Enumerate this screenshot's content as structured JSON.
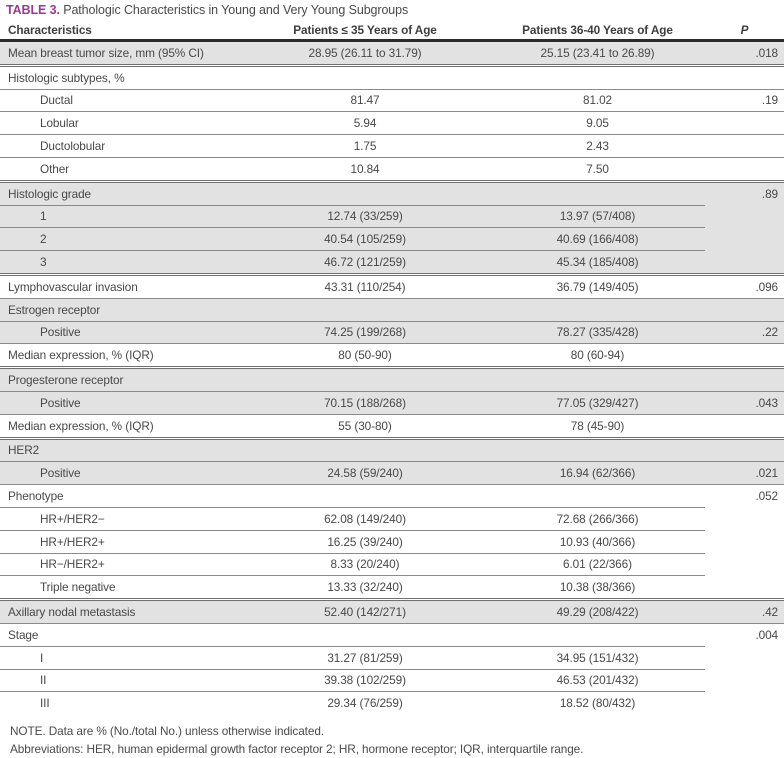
{
  "caption": {
    "tag": "TABLE 3.",
    "title": "Pathologic Characteristics in Young and Very Young Subgroups"
  },
  "colors": {
    "caption_tag_purple": "#9a3a97",
    "row_shade_gray": "#e2e2e2"
  },
  "columns": {
    "characteristics": "Characteristics",
    "age_le_35": "Patients ≤ 35 Years of Age",
    "age_36_40": "Patients 36-40 Years of Age",
    "p": "P"
  },
  "rows": [
    {
      "label": "Mean breast tumor size, mm (95% CI)",
      "v1": "28.95 (26.11 to 31.79)",
      "v2": "25.15 (23.41 to 26.89)",
      "p": ".018"
    },
    {
      "label": "Histologic subtypes, %",
      "v1": "",
      "v2": "",
      "p": ""
    },
    {
      "label": "Ductal",
      "v1": "81.47",
      "v2": "81.02",
      "p": ".19"
    },
    {
      "label": "Lobular",
      "v1": "5.94",
      "v2": "9.05",
      "p": ""
    },
    {
      "label": "Ductolobular",
      "v1": "1.75",
      "v2": "2.43",
      "p": ""
    },
    {
      "label": "Other",
      "v1": "10.84",
      "v2": "7.50",
      "p": ""
    },
    {
      "label": "Histologic grade",
      "v1": "",
      "v2": "",
      "p": ".89"
    },
    {
      "label": "1",
      "v1": "12.74 (33/259)",
      "v2": "13.97 (57/408)",
      "p": ""
    },
    {
      "label": "2",
      "v1": "40.54 (105/259)",
      "v2": "40.69 (166/408)",
      "p": ""
    },
    {
      "label": "3",
      "v1": "46.72 (121/259)",
      "v2": "45.34 (185/408)",
      "p": ""
    },
    {
      "label": "Lymphovascular invasion",
      "v1": "43.31 (110/254)",
      "v2": "36.79 (149/405)",
      "p": ".096"
    },
    {
      "label": "Estrogen receptor",
      "v1": "",
      "v2": "",
      "p": ""
    },
    {
      "label": "Positive",
      "v1": "74.25 (199/268)",
      "v2": "78.27 (335/428)",
      "p": ".22"
    },
    {
      "label": "Median expression, % (IQR)",
      "v1": "80 (50-90)",
      "v2": "80 (60-94)",
      "p": ""
    },
    {
      "label": "Progesterone receptor",
      "v1": "",
      "v2": "",
      "p": ""
    },
    {
      "label": "Positive",
      "v1": "70.15 (188/268)",
      "v2": "77.05 (329/427)",
      "p": ".043"
    },
    {
      "label": "Median expression, % (IQR)",
      "v1": "55 (30-80)",
      "v2": "78 (45-90)",
      "p": ""
    },
    {
      "label": "HER2",
      "v1": "",
      "v2": "",
      "p": ""
    },
    {
      "label": "Positive",
      "v1": "24.58 (59/240)",
      "v2": "16.94 (62/366)",
      "p": ".021"
    },
    {
      "label": "Phenotype",
      "v1": "",
      "v2": "",
      "p": ".052"
    },
    {
      "label": "HR+/HER2−",
      "v1": "62.08 (149/240)",
      "v2": "72.68 (266/366)",
      "p": ""
    },
    {
      "label": "HR+/HER2+",
      "v1": "16.25 (39/240)",
      "v2": "10.93 (40/366)",
      "p": ""
    },
    {
      "label": "HR−/HER2+",
      "v1": "8.33 (20/240)",
      "v2": "6.01 (22/366)",
      "p": ""
    },
    {
      "label": "Triple negative",
      "v1": "13.33 (32/240)",
      "v2": "10.38 (38/366)",
      "p": ""
    },
    {
      "label": "Axillary nodal metastasis",
      "v1": "52.40 (142/271)",
      "v2": "49.29 (208/422)",
      "p": ".42"
    },
    {
      "label": "Stage",
      "v1": "",
      "v2": "",
      "p": ".004"
    },
    {
      "label": "I",
      "v1": "31.27 (81/259)",
      "v2": "34.95 (151/432)",
      "p": ""
    },
    {
      "label": "II",
      "v1": "39.38 (102/259)",
      "v2": "46.53 (201/432)",
      "p": ""
    },
    {
      "label": "III",
      "v1": "29.34 (76/259)",
      "v2": "18.52 (80/432)",
      "p": ""
    }
  ],
  "notes": {
    "note": "NOTE. Data are % (No./total No.) unless otherwise indicated.",
    "abbreviations": "Abbreviations: HER, human epidermal growth factor receptor 2; HR, hormone receptor; IQR, interquartile range."
  }
}
